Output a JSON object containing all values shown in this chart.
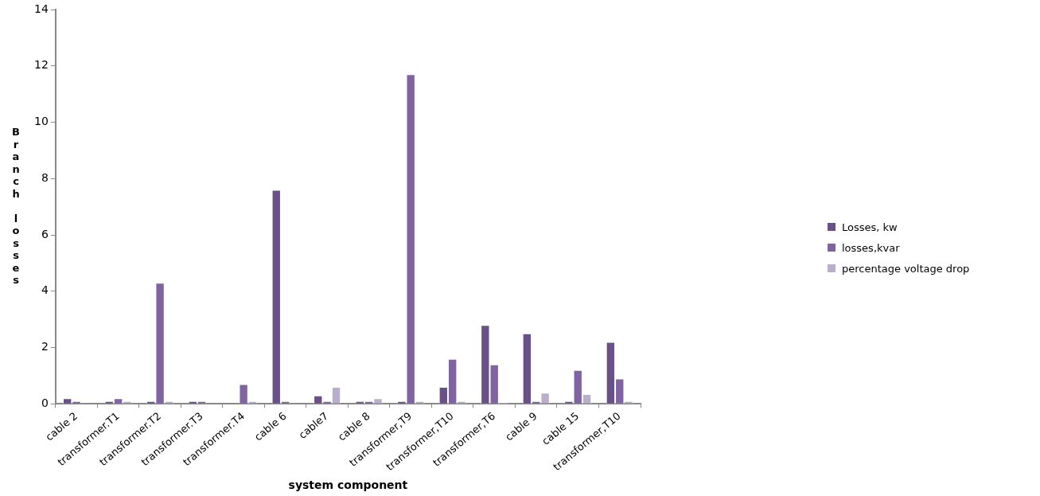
{
  "chart_data": {
    "type": "bar",
    "xlabel": "system component",
    "ylabel": "Branch losses",
    "categories": [
      "cable 2",
      "transformer.T1",
      "transformer.T2",
      "transformer.T3",
      "transformer.T4",
      "cable 6",
      "cable7",
      "cable 8",
      "transformer,T9",
      "transformer,T10",
      "transformer,T6",
      "cable 9",
      "cable 15",
      "transformer,T10"
    ],
    "series": [
      {
        "name": "Losses, kw",
        "color": "#6a5088",
        "values": [
          0.2,
          0.1,
          0.1,
          0.1,
          0,
          7.6,
          0.3,
          0.1,
          0.1,
          0.6,
          2.8,
          2.5,
          0.1,
          2.2
        ]
      },
      {
        "name": "losses,kvar",
        "color": "#8064a2",
        "values": [
          0.1,
          0.2,
          4.3,
          0.1,
          0.7,
          0.1,
          0.1,
          0.1,
          11.7,
          1.6,
          1.4,
          0.1,
          1.2,
          0.9
        ]
      },
      {
        "name": "percentage voltage drop",
        "color": "#b9aecc",
        "values": [
          0,
          0.1,
          0.1,
          0,
          0.1,
          0,
          0.6,
          0.2,
          0.1,
          0.1,
          0.05,
          0.4,
          0.35,
          0.1
        ]
      }
    ],
    "ylim": [
      0,
      14
    ],
    "yticks": [
      0,
      2,
      4,
      6,
      8,
      10,
      12,
      14
    ],
    "grid": false,
    "legend": "right"
  }
}
